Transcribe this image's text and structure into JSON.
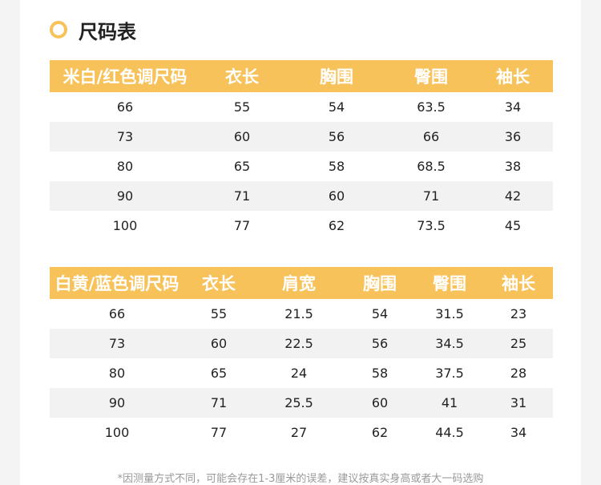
{
  "title": "尺码表",
  "colors": {
    "accent": "#f8c25a",
    "stripe": "#f2f2f2"
  },
  "table1": {
    "headers": [
      "米白/红色调尺码",
      "衣长",
      "胸围",
      "臀围",
      "袖长"
    ],
    "rows": [
      [
        "66",
        "55",
        "54",
        "63.5",
        "34"
      ],
      [
        "73",
        "60",
        "56",
        "66",
        "36"
      ],
      [
        "80",
        "65",
        "58",
        "68.5",
        "38"
      ],
      [
        "90",
        "71",
        "60",
        "71",
        "42"
      ],
      [
        "100",
        "77",
        "62",
        "73.5",
        "45"
      ]
    ]
  },
  "table2": {
    "headers": [
      "白黄/蓝色调尺码",
      "衣长",
      "肩宽",
      "胸围",
      "臀围",
      "袖长"
    ],
    "rows": [
      [
        "66",
        "55",
        "21.5",
        "54",
        "31.5",
        "23"
      ],
      [
        "73",
        "60",
        "22.5",
        "56",
        "34.5",
        "25"
      ],
      [
        "80",
        "65",
        "24",
        "58",
        "37.5",
        "28"
      ],
      [
        "90",
        "71",
        "25.5",
        "60",
        "41",
        "31"
      ],
      [
        "100",
        "77",
        "27",
        "62",
        "44.5",
        "34"
      ]
    ]
  },
  "note": "*因测量方式不同，可能会存在1-3厘米的误差，建议按真实身高或者大一码选购"
}
